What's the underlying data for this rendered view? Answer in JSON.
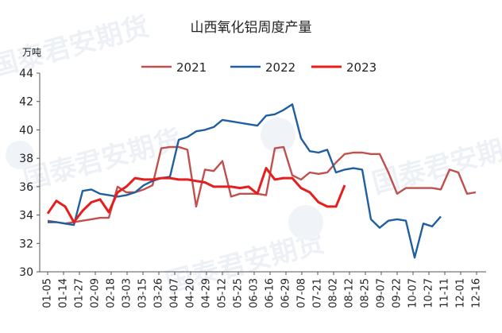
{
  "chart_data": {
    "type": "line",
    "title": "山西氧化铝周度产量",
    "unit_label": "万吨",
    "xlabel": "",
    "ylabel": "",
    "ylim": [
      30,
      44
    ],
    "yticks": [
      30,
      32,
      34,
      36,
      38,
      40,
      42,
      44
    ],
    "grid": false,
    "legend_position": "top-center",
    "categories": [
      "01-05",
      "01-13",
      "01-20",
      "01-27",
      "02-02",
      "02-09",
      "02-18",
      "02-25",
      "03-03",
      "03-10",
      "03-18",
      "03-25",
      "04-01",
      "04-07",
      "04-14",
      "04-22",
      "04-29",
      "05-06",
      "05-12",
      "05-19",
      "05-25",
      "06-03",
      "06-09",
      "06-16",
      "06-22",
      "06-29",
      "07-06",
      "07-14",
      "07-21",
      "07-28",
      "08-04",
      "08-11",
      "08-18",
      "08-25",
      "09-01",
      "09-07",
      "09-15",
      "09-22",
      "09-29",
      "10-07",
      "10-14",
      "10-21",
      "10-27",
      "11-03",
      "11-11",
      "11-18",
      "11-24",
      "12-01",
      "12-08",
      "12-16",
      "12-23"
    ],
    "xtick_labels": [
      "01-05",
      "01-14",
      "01-27",
      "02-09",
      "02-18",
      "03-03",
      "03-15",
      "03-26",
      "04-07",
      "04-20",
      "04-29",
      "05-12",
      "05-25",
      "06-03",
      "06-16",
      "06-29",
      "07-08",
      "07-21",
      "08-02",
      "08-12",
      "08-25",
      "09-07",
      "09-22",
      "10-07",
      "10-27",
      "11-11",
      "12-01",
      "12-16"
    ],
    "series": [
      {
        "name": "2021",
        "color": "#c0504d",
        "values": [
          33.6,
          33.5,
          33.4,
          33.5,
          33.6,
          33.7,
          33.8,
          33.8,
          36.0,
          35.6,
          35.6,
          35.8,
          36.1,
          38.7,
          38.8,
          38.8,
          38.6,
          34.6,
          37.2,
          37.1,
          37.8,
          35.3,
          35.5,
          35.5,
          35.5,
          35.4,
          38.7,
          38.8,
          36.8,
          36.5,
          37.0,
          36.9,
          37.0,
          37.7,
          38.3,
          38.4,
          38.4,
          38.3,
          38.3,
          37.0,
          35.5,
          35.9,
          35.9,
          35.9,
          35.9,
          35.8,
          37.2,
          37.0,
          35.5,
          35.6,
          null
        ]
      },
      {
        "name": "2022",
        "color": "#1f5fa0",
        "values": [
          33.5,
          33.5,
          33.4,
          33.3,
          35.7,
          35.8,
          35.5,
          35.4,
          35.3,
          35.4,
          35.6,
          36.1,
          36.4,
          36.6,
          36.7,
          39.3,
          39.5,
          39.9,
          40.0,
          40.2,
          40.7,
          40.6,
          40.5,
          40.4,
          40.3,
          41.0,
          41.1,
          41.4,
          41.8,
          39.4,
          38.5,
          38.4,
          38.6,
          37.0,
          37.2,
          37.3,
          37.2,
          33.7,
          33.1,
          33.6,
          33.7,
          33.6,
          31.0,
          33.4,
          33.2,
          33.9,
          null,
          null,
          null,
          null,
          null
        ]
      },
      {
        "name": "2023",
        "color": "#e51e1e",
        "values": [
          34.1,
          35.0,
          34.6,
          33.5,
          34.3,
          34.9,
          35.1,
          34.2,
          35.6,
          36.0,
          36.6,
          36.5,
          36.5,
          36.6,
          36.6,
          36.5,
          36.5,
          36.4,
          36.3,
          36.0,
          36.0,
          36.0,
          35.9,
          36.0,
          35.5,
          37.3,
          36.5,
          36.6,
          36.6,
          35.9,
          35.6,
          34.9,
          34.6,
          34.6,
          36.1,
          null,
          null,
          null,
          null,
          null,
          null,
          null,
          null,
          null,
          null,
          null,
          null,
          null,
          null,
          null,
          null
        ]
      }
    ]
  }
}
